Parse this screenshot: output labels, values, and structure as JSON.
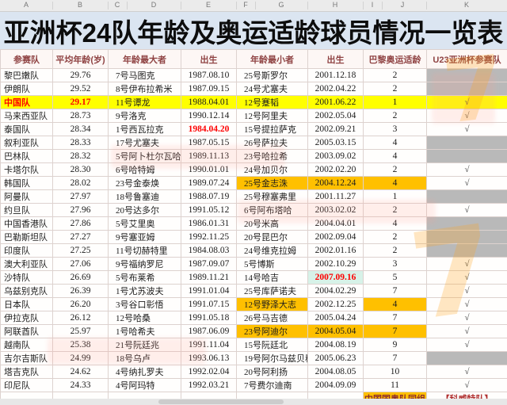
{
  "title": "亚洲杯24队年龄及奥运适龄球员情况一览表",
  "column_letters": [
    "A",
    "B",
    "C",
    "D",
    "E",
    "F",
    "G",
    "H",
    "I",
    "J",
    "K"
  ],
  "table": {
    "header": {
      "team": "参赛队",
      "avg": "平均年龄(岁)",
      "oldest": "年龄最大者",
      "oldest_birth": "出生",
      "youngest": "年龄最小者",
      "youngest_birth": "出生",
      "paris": "巴黎奥运适龄",
      "u23": "U23亚洲杯参赛队"
    },
    "check_glyph": "√",
    "rows": [
      {
        "team": "黎巴嫩队",
        "avg": "29.76",
        "oldest": "7号马图克",
        "oldest_birth": "1987.08.10",
        "youngest": "25号斯罗尔",
        "youngest_birth": "2001.12.18",
        "paris": "2",
        "u23": false,
        "hl": {}
      },
      {
        "team": "伊朗队",
        "avg": "29.52",
        "oldest": "8号伊布拉希米",
        "oldest_birth": "1987.09.15",
        "youngest": "24号尤塞夫",
        "youngest_birth": "2002.04.22",
        "paris": "2",
        "u23": false,
        "hl": {}
      },
      {
        "team": "中国队",
        "avg": "29.17",
        "oldest": "11号谭龙",
        "oldest_birth": "1988.04.01",
        "youngest": "12号蹇韬",
        "youngest_birth": "2001.06.22",
        "paris": "1",
        "u23": true,
        "hl": {
          "row": "yellow",
          "team": "red",
          "avg": "red"
        }
      },
      {
        "team": "马来西亚队",
        "avg": "28.73",
        "oldest": "9号洛克",
        "oldest_birth": "1990.12.14",
        "youngest": "12号阿里夫",
        "youngest_birth": "2002.05.04",
        "paris": "2",
        "u23": true,
        "hl": {}
      },
      {
        "team": "泰国队",
        "avg": "28.34",
        "oldest": "1号西瓦拉克",
        "oldest_birth": "1984.04.20",
        "youngest": "15号提拉萨克",
        "youngest_birth": "2002.09.21",
        "paris": "3",
        "u23": true,
        "hl": {
          "obirth": "red"
        }
      },
      {
        "team": "叙利亚队",
        "avg": "28.33",
        "oldest": "17号尤塞夫",
        "oldest_birth": "1987.05.15",
        "youngest": "26号萨拉夫",
        "youngest_birth": "2005.03.15",
        "paris": "4",
        "u23": false,
        "hl": {}
      },
      {
        "team": "巴林队",
        "avg": "28.32",
        "oldest": "5号阿卜杜尔瓦哈布",
        "oldest_birth": "1989.11.13",
        "youngest": "23号哈拉希",
        "youngest_birth": "2003.09.02",
        "paris": "4",
        "u23": false,
        "hl": {}
      },
      {
        "team": "卡塔尔队",
        "avg": "28.30",
        "oldest": "6号哈特姆",
        "oldest_birth": "1990.01.01",
        "youngest": "24号加贝尔",
        "youngest_birth": "2002.02.20",
        "paris": "2",
        "u23": true,
        "hl": {}
      },
      {
        "team": "韩国队",
        "avg": "28.02",
        "oldest": "23号金泰焕",
        "oldest_birth": "1989.07.24",
        "youngest": "25号金志洙",
        "youngest_birth": "2004.12.24",
        "paris": "4",
        "u23": true,
        "hl": {
          "youngest": "orange",
          "ybirth": "orange",
          "paris": "orange"
        }
      },
      {
        "team": "阿曼队",
        "avg": "27.97",
        "oldest": "18号鲁塞迪",
        "oldest_birth": "1988.07.19",
        "youngest": "25号穆塞弗里",
        "youngest_birth": "2001.11.27",
        "paris": "1",
        "u23": false,
        "hl": {}
      },
      {
        "team": "约旦队",
        "avg": "27.96",
        "oldest": "20号达多尔",
        "oldest_birth": "1991.05.12",
        "youngest": "6号阿布塔哈",
        "youngest_birth": "2003.02.02",
        "paris": "2",
        "u23": true,
        "hl": {}
      },
      {
        "team": "中国香港队",
        "avg": "27.86",
        "oldest": "5号艾里奥",
        "oldest_birth": "1986.01.31",
        "youngest": "20号米高",
        "youngest_birth": "2004.04.01",
        "paris": "4",
        "u23": false,
        "hl": {}
      },
      {
        "team": "巴勒斯坦队",
        "avg": "27.27",
        "oldest": "9号塞亚姆",
        "oldest_birth": "1992.11.25",
        "youngest": "20号昆巴尔",
        "youngest_birth": "2002.09.04",
        "paris": "2",
        "u23": false,
        "hl": {}
      },
      {
        "team": "印度队",
        "avg": "27.25",
        "oldest": "11号切赫特里",
        "oldest_birth": "1984.08.03",
        "youngest": "24号维克拉姆",
        "youngest_birth": "2002.01.16",
        "paris": "2",
        "u23": false,
        "hl": {}
      },
      {
        "team": "澳大利亚队",
        "avg": "27.06",
        "oldest": "9号福纳罗尼",
        "oldest_birth": "1987.09.07",
        "youngest": "5号博斯",
        "youngest_birth": "2002.10.29",
        "paris": "3",
        "u23": true,
        "hl": {}
      },
      {
        "team": "沙特队",
        "avg": "26.69",
        "oldest": "5号布莱希",
        "oldest_birth": "1989.11.21",
        "youngest": "14号哈吉",
        "youngest_birth": "2007.09.16",
        "paris": "5",
        "u23": true,
        "hl": {
          "ybirth": "mint"
        }
      },
      {
        "team": "乌兹别克队",
        "avg": "26.39",
        "oldest": "1号尤苏波夫",
        "oldest_birth": "1991.01.04",
        "youngest": "25号库萨诺夫",
        "youngest_birth": "2004.02.29",
        "paris": "7",
        "u23": true,
        "hl": {}
      },
      {
        "team": "日本队",
        "avg": "26.20",
        "oldest": "3号谷口彰悟",
        "oldest_birth": "1991.07.15",
        "youngest": "12号野泽大志",
        "youngest_birth": "2002.12.25",
        "paris": "4",
        "u23": true,
        "hl": {
          "youngest": "orange",
          "paris": "orange"
        }
      },
      {
        "team": "伊拉克队",
        "avg": "26.12",
        "oldest": "12号哈桑",
        "oldest_birth": "1991.05.18",
        "youngest": "26号马吉德",
        "youngest_birth": "2005.04.24",
        "paris": "7",
        "u23": true,
        "hl": {}
      },
      {
        "team": "阿联酋队",
        "avg": "25.97",
        "oldest": "1号哈希夫",
        "oldest_birth": "1987.06.09",
        "youngest": "23号阿迪尔",
        "youngest_birth": "2004.05.04",
        "paris": "7",
        "u23": true,
        "hl": {
          "youngest": "orange",
          "ybirth": "orange",
          "paris": "orange"
        }
      },
      {
        "team": "越南队",
        "avg": "25.38",
        "oldest": "21号阮廷兆",
        "oldest_birth": "1991.11.04",
        "youngest": "15号阮廷北",
        "youngest_birth": "2004.08.19",
        "paris": "9",
        "u23": true,
        "hl": {}
      },
      {
        "team": "吉尔吉斯队",
        "avg": "24.99",
        "oldest": "18号乌卢",
        "oldest_birth": "1993.06.13",
        "youngest": "19号阿尔马兹贝科夫",
        "youngest_birth": "2005.06.23",
        "paris": "7",
        "u23": false,
        "hl": {}
      },
      {
        "team": "塔吉克队",
        "avg": "24.62",
        "oldest": "4号纳扎罗夫",
        "oldest_birth": "1992.02.04",
        "youngest": "20号阿利扬",
        "youngest_birth": "2004.08.05",
        "paris": "10",
        "u23": true,
        "hl": {}
      },
      {
        "team": "印尼队",
        "avg": "24.33",
        "oldest": "4号阿玛特",
        "oldest_birth": "1992.03.21",
        "youngest": "7号费尔迪南",
        "youngest_birth": "2004.09.09",
        "paris": "11",
        "u23": true,
        "hl": {}
      }
    ],
    "footer": {
      "paris_note": "中国国奥队同组",
      "u23_note": "【科威特队】"
    }
  },
  "colors": {
    "highlight_yellow": "#ffff00",
    "highlight_orange": "#ffc000",
    "not_qualified_gray": "#b9b9b9",
    "mint_highlight": "#d7f2e8",
    "alert_red": "#fe0000",
    "header_text": "#8f4343",
    "title_bg": "#dbe5f1"
  }
}
